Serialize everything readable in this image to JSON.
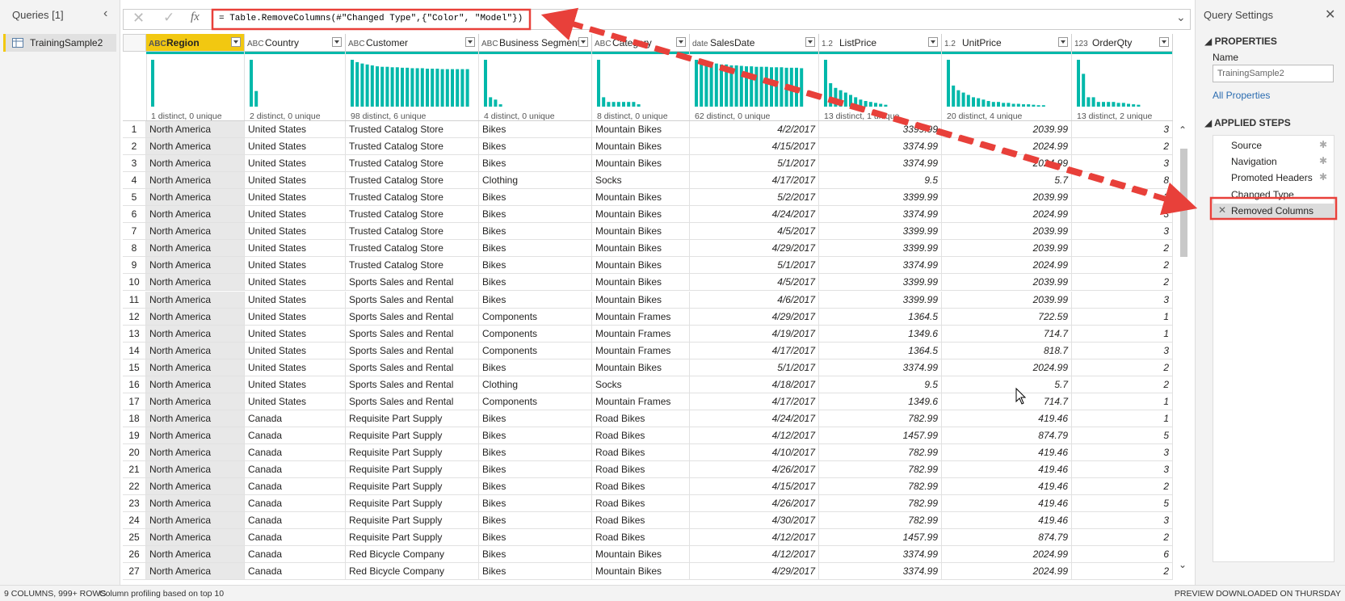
{
  "queries_pane": {
    "title": "Queries [1]",
    "items": [
      "TrainingSample2"
    ]
  },
  "formula_bar": {
    "formula": "= Table.RemoveColumns(#\"Changed Type\",{\"Color\", \"Model\"})"
  },
  "table": {
    "columns": [
      {
        "icon": "ABC",
        "name": "Region",
        "profile": "1 distinct, 0 unique",
        "histogram": [
          10
        ]
      },
      {
        "icon": "ABC",
        "name": "Country",
        "profile": "2 distinct, 0 unique",
        "histogram": [
          9,
          3
        ]
      },
      {
        "icon": "ABC",
        "name": "Customer",
        "profile": "98 distinct, 6 unique",
        "histogram": [
          10,
          9.5,
          9.2,
          9,
          8.8,
          8.6,
          8.5,
          8.5,
          8.4,
          8.4,
          8.3,
          8.3,
          8.2,
          8.2,
          8.2,
          8.1,
          8.1,
          8.1,
          8,
          8,
          8,
          8,
          8,
          8
        ]
      },
      {
        "icon": "ABC",
        "name": "Business Segment",
        "profile": "4 distinct, 0 unique",
        "histogram": [
          10,
          2,
          1.5,
          0.5
        ]
      },
      {
        "icon": "ABC",
        "name": "Category",
        "profile": "8 distinct, 0 unique",
        "histogram": [
          10,
          2,
          1,
          1,
          1,
          1,
          1,
          1,
          0.5
        ]
      },
      {
        "icon": "date",
        "name": "SalesDate",
        "profile": "62 distinct, 0 unique",
        "histogram": [
          10,
          9.8,
          9.5,
          9.3,
          9.2,
          9,
          9,
          8.8,
          8.8,
          8.7,
          8.6,
          8.6,
          8.5,
          8.5,
          8.5,
          8.4,
          8.4,
          8.4,
          8.3,
          8.3,
          8.3,
          8.2
        ]
      },
      {
        "icon": "1.2",
        "name": "ListPrice",
        "profile": "13 distinct, 1 unique",
        "histogram": [
          10,
          5,
          4,
          3.5,
          3,
          2.5,
          2,
          1.5,
          1.2,
          1,
          0.8,
          0.6,
          0.4
        ]
      },
      {
        "icon": "1.2",
        "name": "UnitPrice",
        "profile": "20 distinct, 4 unique",
        "histogram": [
          10,
          4.5,
          3.5,
          3,
          2.5,
          2,
          1.8,
          1.5,
          1.2,
          1,
          1,
          0.8,
          0.8,
          0.6,
          0.6,
          0.5,
          0.5,
          0.4,
          0.3,
          0.3
        ]
      },
      {
        "icon": "123",
        "name": "OrderQty",
        "profile": "13 distinct, 2 unique",
        "histogram": [
          10,
          7,
          2,
          2,
          1,
          1,
          1,
          1,
          0.8,
          0.8,
          0.6,
          0.5,
          0.4
        ]
      }
    ],
    "row_numbers": [
      1,
      2,
      3,
      4,
      5,
      6,
      7,
      8,
      9,
      10,
      11,
      12,
      13,
      14,
      15,
      16,
      17,
      18,
      19,
      20,
      21,
      22,
      23,
      24,
      25,
      26,
      27
    ],
    "rows": [
      [
        "North America",
        "United States",
        "Trusted Catalog Store",
        "Bikes",
        "Mountain Bikes",
        "4/2/2017",
        3399.99,
        2039.99,
        3
      ],
      [
        "North America",
        "United States",
        "Trusted Catalog Store",
        "Bikes",
        "Mountain Bikes",
        "4/15/2017",
        3374.99,
        2024.99,
        2
      ],
      [
        "North America",
        "United States",
        "Trusted Catalog Store",
        "Bikes",
        "Mountain Bikes",
        "5/1/2017",
        3374.99,
        2024.99,
        3
      ],
      [
        "North America",
        "United States",
        "Trusted Catalog Store",
        "Clothing",
        "Socks",
        "4/17/2017",
        9.5,
        5.7,
        8
      ],
      [
        "North America",
        "United States",
        "Trusted Catalog Store",
        "Bikes",
        "Mountain Bikes",
        "5/2/2017",
        3399.99,
        2039.99,
        3
      ],
      [
        "North America",
        "United States",
        "Trusted Catalog Store",
        "Bikes",
        "Mountain Bikes",
        "4/24/2017",
        3374.99,
        2024.99,
        3
      ],
      [
        "North America",
        "United States",
        "Trusted Catalog Store",
        "Bikes",
        "Mountain Bikes",
        "4/5/2017",
        3399.99,
        2039.99,
        3
      ],
      [
        "North America",
        "United States",
        "Trusted Catalog Store",
        "Bikes",
        "Mountain Bikes",
        "4/29/2017",
        3399.99,
        2039.99,
        2
      ],
      [
        "North America",
        "United States",
        "Trusted Catalog Store",
        "Bikes",
        "Mountain Bikes",
        "5/1/2017",
        3374.99,
        2024.99,
        2
      ],
      [
        "North America",
        "United States",
        "Sports Sales and Rental",
        "Bikes",
        "Mountain Bikes",
        "4/5/2017",
        3399.99,
        2039.99,
        2
      ],
      [
        "North America",
        "United States",
        "Sports Sales and Rental",
        "Bikes",
        "Mountain Bikes",
        "4/6/2017",
        3399.99,
        2039.99,
        3
      ],
      [
        "North America",
        "United States",
        "Sports Sales and Rental",
        "Components",
        "Mountain Frames",
        "4/29/2017",
        1364.5,
        722.59,
        1
      ],
      [
        "North America",
        "United States",
        "Sports Sales and Rental",
        "Components",
        "Mountain Frames",
        "4/19/2017",
        1349.6,
        714.7,
        1
      ],
      [
        "North America",
        "United States",
        "Sports Sales and Rental",
        "Components",
        "Mountain Frames",
        "4/17/2017",
        1364.5,
        818.7,
        3
      ],
      [
        "North America",
        "United States",
        "Sports Sales and Rental",
        "Bikes",
        "Mountain Bikes",
        "5/1/2017",
        3374.99,
        2024.99,
        2
      ],
      [
        "North America",
        "United States",
        "Sports Sales and Rental",
        "Clothing",
        "Socks",
        "4/18/2017",
        9.5,
        5.7,
        2
      ],
      [
        "North America",
        "United States",
        "Sports Sales and Rental",
        "Components",
        "Mountain Frames",
        "4/17/2017",
        1349.6,
        714.7,
        1
      ],
      [
        "North America",
        "Canada",
        "Requisite Part Supply",
        "Bikes",
        "Road Bikes",
        "4/24/2017",
        782.99,
        419.46,
        1
      ],
      [
        "North America",
        "Canada",
        "Requisite Part Supply",
        "Bikes",
        "Road Bikes",
        "4/12/2017",
        1457.99,
        874.79,
        5
      ],
      [
        "North America",
        "Canada",
        "Requisite Part Supply",
        "Bikes",
        "Road Bikes",
        "4/10/2017",
        782.99,
        419.46,
        3
      ],
      [
        "North America",
        "Canada",
        "Requisite Part Supply",
        "Bikes",
        "Road Bikes",
        "4/26/2017",
        782.99,
        419.46,
        3
      ],
      [
        "North America",
        "Canada",
        "Requisite Part Supply",
        "Bikes",
        "Road Bikes",
        "4/15/2017",
        782.99,
        419.46,
        2
      ],
      [
        "North America",
        "Canada",
        "Requisite Part Supply",
        "Bikes",
        "Road Bikes",
        "4/26/2017",
        782.99,
        419.46,
        5
      ],
      [
        "North America",
        "Canada",
        "Requisite Part Supply",
        "Bikes",
        "Road Bikes",
        "4/30/2017",
        782.99,
        419.46,
        3
      ],
      [
        "North America",
        "Canada",
        "Requisite Part Supply",
        "Bikes",
        "Road Bikes",
        "4/12/2017",
        1457.99,
        874.79,
        2
      ],
      [
        "North America",
        "Canada",
        "Red Bicycle Company",
        "Bikes",
        "Mountain Bikes",
        "4/12/2017",
        3374.99,
        2024.99,
        6
      ],
      [
        "North America",
        "Canada",
        "Red Bicycle Company",
        "Bikes",
        "Mountain Bikes",
        "4/29/2017",
        3374.99,
        2024.99,
        2
      ]
    ]
  },
  "settings_pane": {
    "title": "Query Settings",
    "properties_heading": "PROPERTIES",
    "name_label": "Name",
    "name_value": "TrainingSample2",
    "all_properties": "All Properties",
    "steps_heading": "APPLIED STEPS",
    "steps": [
      "Source",
      "Navigation",
      "Promoted Headers",
      "Changed Type",
      "Removed Columns"
    ]
  },
  "status_bar": {
    "left": "9 COLUMNS, 999+ ROWS",
    "middle": "Column profiling based on top 10",
    "right": "PREVIEW DOWNLOADED ON THURSDAY"
  }
}
